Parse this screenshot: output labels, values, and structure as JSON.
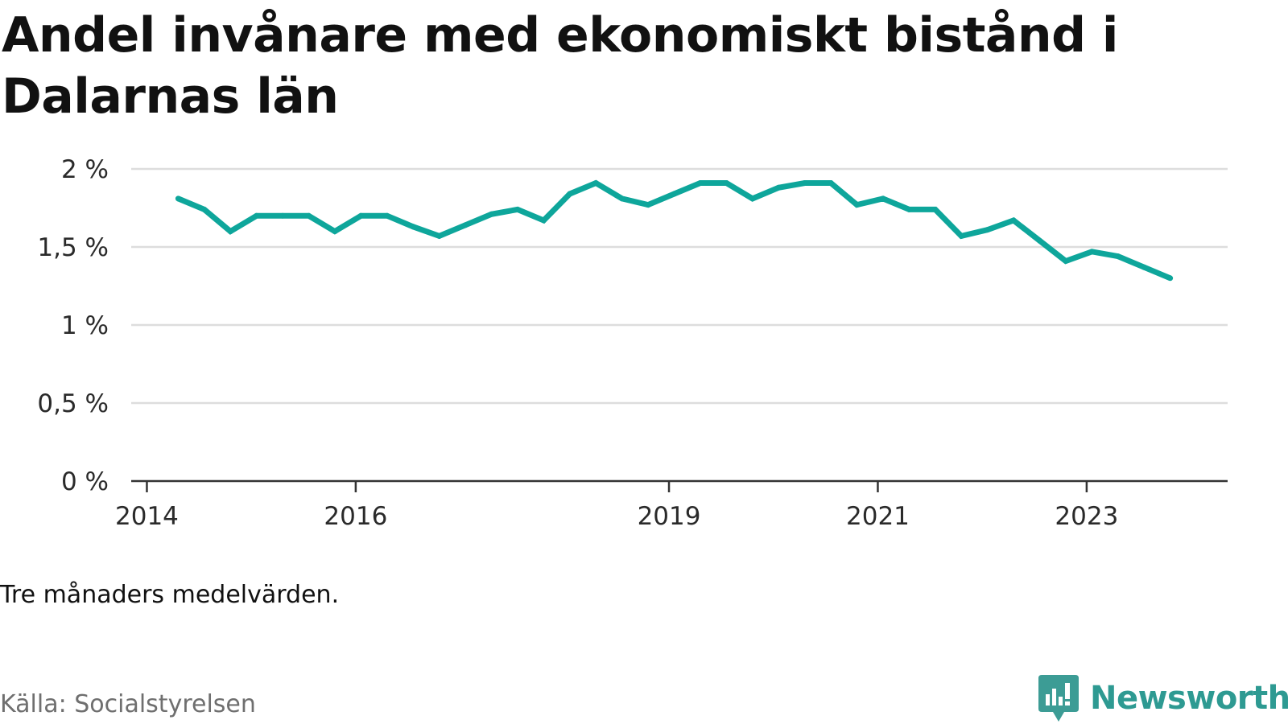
{
  "title": "Andel invånare med ekonomiskt bistånd i Dalarnas län",
  "note": "Tre månaders medelvärden.",
  "source": "Källa: Socialstyrelsen",
  "brand": {
    "name": "Newsworthy",
    "icon": "newsworthy-logo-icon",
    "color": "#2e9a92"
  },
  "colors": {
    "line": "#0ea69b",
    "grid": "#dddddd",
    "axis": "#333333"
  },
  "chart_data": {
    "type": "line",
    "title": "Andel invånare med ekonomiskt bistånd i Dalarnas län",
    "xlabel": "",
    "ylabel": "",
    "ylim": [
      0,
      2
    ],
    "yticks": [
      {
        "value": 0,
        "label": "0 %"
      },
      {
        "value": 0.5,
        "label": "0,5 %"
      },
      {
        "value": 1,
        "label": "1 %"
      },
      {
        "value": 1.5,
        "label": "1,5 %"
      },
      {
        "value": 2,
        "label": "2 %"
      }
    ],
    "xticks": [
      {
        "value": 2014,
        "label": "2014"
      },
      {
        "value": 2016,
        "label": "2016"
      },
      {
        "value": 2019,
        "label": "2019"
      },
      {
        "value": 2021,
        "label": "2021"
      },
      {
        "value": 2023,
        "label": "2023"
      }
    ],
    "xlim": [
      2013.85,
      2024.35
    ],
    "grid": true,
    "legend": "none",
    "series": [
      {
        "x": [
          2014.3,
          2014.55,
          2014.8,
          2015.05,
          2015.3,
          2015.55,
          2015.8,
          2016.05,
          2016.3,
          2016.55,
          2016.8,
          2017.05,
          2017.3,
          2017.55,
          2017.8,
          2018.05,
          2018.3,
          2018.55,
          2018.8,
          2019.05,
          2019.3,
          2019.55,
          2019.8,
          2020.05,
          2020.3,
          2020.55,
          2020.8,
          2021.05,
          2021.3,
          2021.55,
          2021.8,
          2022.05,
          2022.3,
          2022.55,
          2022.8,
          2023.05,
          2023.3,
          2023.55,
          2023.8
        ],
        "values": [
          1.81,
          1.74,
          1.6,
          1.7,
          1.7,
          1.7,
          1.6,
          1.7,
          1.7,
          1.63,
          1.57,
          1.64,
          1.71,
          1.74,
          1.67,
          1.84,
          1.91,
          1.81,
          1.77,
          1.84,
          1.91,
          1.91,
          1.81,
          1.88,
          1.91,
          1.91,
          1.77,
          1.81,
          1.74,
          1.74,
          1.57,
          1.61,
          1.67,
          1.54,
          1.41,
          1.47,
          1.44,
          1.37,
          1.3
        ]
      }
    ]
  }
}
